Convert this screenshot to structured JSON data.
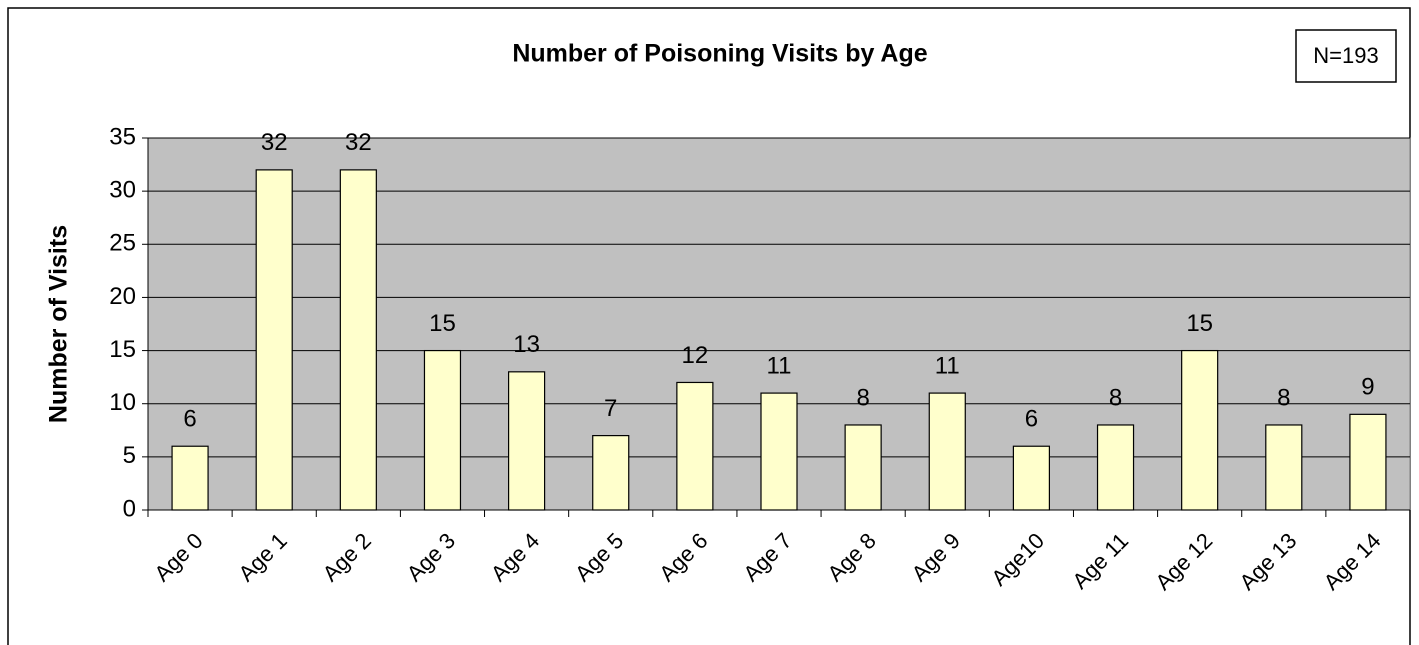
{
  "chart_data": {
    "type": "bar",
    "title": "Number of Poisoning Visits by Age",
    "annotation": "N=193",
    "y_label": "Number of Visits",
    "categories": [
      "Age 0",
      "Age 1",
      "Age 2",
      "Age 3",
      "Age 4",
      "Age 5",
      "Age 6",
      "Age 7",
      "Age 8",
      "Age 9",
      "Age10",
      "Age 11",
      "Age 12",
      "Age 13",
      "Age 14"
    ],
    "values": [
      6,
      32,
      32,
      15,
      13,
      7,
      12,
      11,
      8,
      11,
      6,
      8,
      15,
      8,
      9
    ],
    "color": "#ffffcc",
    "ylim": [
      0,
      35
    ],
    "yticks": [
      0,
      5,
      10,
      15,
      20,
      25,
      30,
      35
    ],
    "grid": true,
    "plot_background": "#c0c0c0"
  }
}
